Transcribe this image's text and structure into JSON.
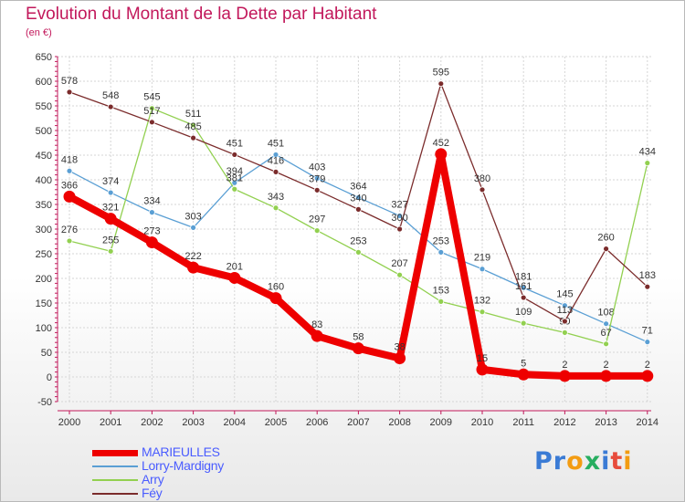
{
  "title": "Evolution du Montant de la Dette par Habitant",
  "unit": "(en €)",
  "logo": {
    "text": "Proxiti",
    "letters": [
      {
        "ch": "P",
        "color": "#3a7bd5"
      },
      {
        "ch": "r",
        "color": "#3a7bd5"
      },
      {
        "ch": "o",
        "color": "#f39c12"
      },
      {
        "ch": "x",
        "color": "#27ae60"
      },
      {
        "ch": "i",
        "color": "#3a7bd5"
      },
      {
        "ch": "t",
        "color": "#e74c3c"
      },
      {
        "ch": "i",
        "color": "#f39c12"
      }
    ]
  },
  "chart_data": {
    "type": "line",
    "x": [
      2000,
      2001,
      2002,
      2003,
      2004,
      2005,
      2006,
      2007,
      2008,
      2009,
      2010,
      2011,
      2012,
      2013,
      2014
    ],
    "ylim": [
      -50,
      650
    ],
    "yticks": [
      -50,
      0,
      50,
      100,
      150,
      200,
      250,
      300,
      350,
      400,
      450,
      500,
      550,
      600,
      650
    ],
    "grid": true,
    "legend_position": "bottom-left",
    "series": [
      {
        "name": "Lorry-Mardigny",
        "color": "#5a9fd4",
        "values": [
          418,
          374,
          334,
          303,
          394,
          451,
          403,
          364,
          327,
          253,
          219,
          181,
          145,
          108,
          71
        ],
        "labels": [
          "418",
          "374",
          "334",
          "303",
          "394",
          "451",
          "403",
          "364",
          "327",
          "253",
          "219",
          "181",
          "145",
          "108",
          "71"
        ]
      },
      {
        "name": "Arry",
        "color": "#92d050",
        "values": [
          276,
          255,
          545,
          511,
          381,
          343,
          297,
          253,
          207,
          153,
          132,
          109,
          90,
          67,
          434
        ],
        "labels": [
          "276",
          "255",
          "545",
          "511",
          "381",
          "343",
          "297",
          "253",
          "207",
          "153",
          "132",
          "109",
          "90",
          "67",
          "434"
        ]
      },
      {
        "name": "Féy",
        "color": "#7b2c2c",
        "values": [
          578,
          548,
          517,
          485,
          451,
          416,
          379,
          340,
          300,
          595,
          380,
          161,
          113,
          260,
          183
        ],
        "labels": [
          "578",
          "548",
          "517",
          "485",
          "451",
          "416",
          "379",
          "340",
          "300",
          "595",
          "380",
          "161",
          "113",
          "260",
          "183"
        ]
      },
      {
        "name": "MARIEULLES",
        "color": "#ee0000",
        "values": [
          366,
          321,
          273,
          222,
          201,
          160,
          83,
          58,
          38,
          452,
          15,
          5,
          2,
          2,
          2
        ],
        "labels": [
          "366",
          "321",
          "273",
          "222",
          "201",
          "160",
          "83",
          "58",
          "38",
          "452",
          "15",
          "5",
          "2",
          "2",
          "2"
        ]
      }
    ]
  },
  "legend": [
    {
      "label": "MARIEULLES",
      "color": "#ee0000",
      "text_color": "#4a5cff"
    },
    {
      "label": "Lorry-Mardigny",
      "color": "#5a9fd4",
      "text_color": "#4a5cff"
    },
    {
      "label": "Arry",
      "color": "#92d050",
      "text_color": "#4a5cff"
    },
    {
      "label": "Féy",
      "color": "#7b2c2c",
      "text_color": "#4a5cff"
    }
  ]
}
